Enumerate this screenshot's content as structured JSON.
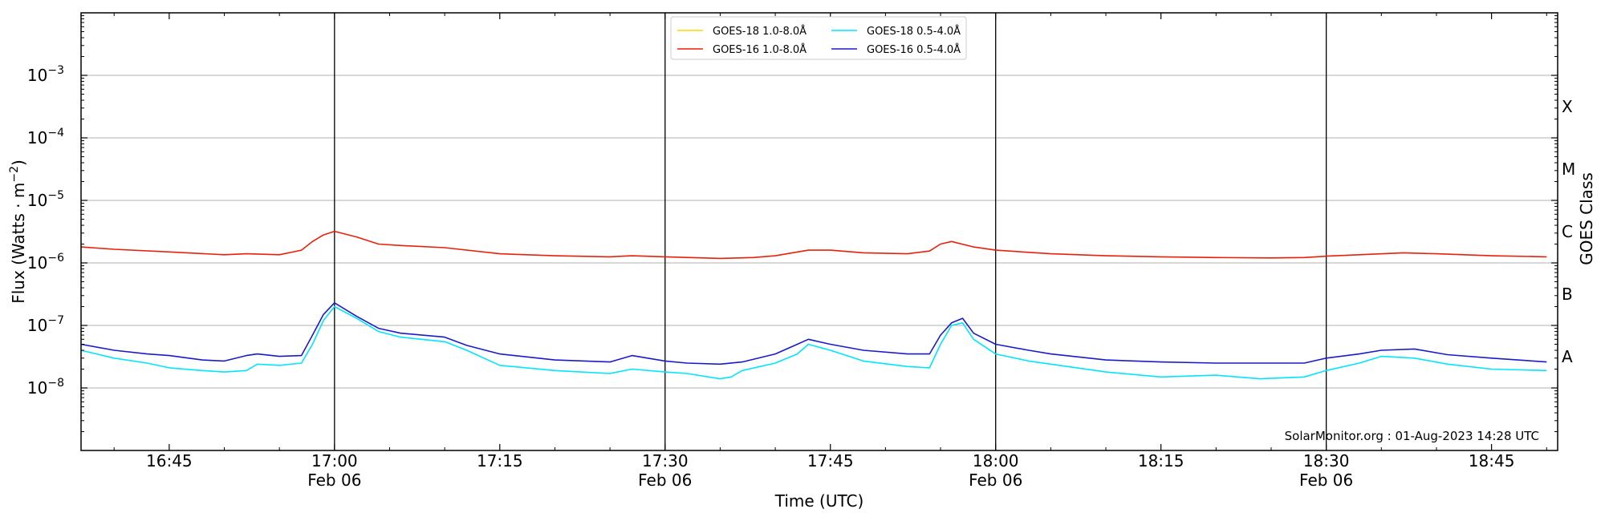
{
  "chart_data": {
    "type": "line",
    "title": "",
    "xlabel": "Time (UTC)",
    "ylabel": "Flux (Watts · m",
    "ylabel_sup": "−2",
    "ylabel_close": ")",
    "y2label": "GOES Class",
    "yscale": "log",
    "xlim": [
      "16:37",
      "18:51"
    ],
    "ylim": [
      1e-09,
      0.01
    ],
    "grid": "horizontal",
    "legend_placement": "top-center",
    "x_ticks": [
      {
        "t": "16:45",
        "line1": "16:45",
        "line2": ""
      },
      {
        "t": "17:00",
        "line1": "17:00",
        "line2": "Feb 06"
      },
      {
        "t": "17:15",
        "line1": "17:15",
        "line2": ""
      },
      {
        "t": "17:30",
        "line1": "17:30",
        "line2": "Feb 06"
      },
      {
        "t": "17:45",
        "line1": "17:45",
        "line2": ""
      },
      {
        "t": "18:00",
        "line1": "18:00",
        "line2": "Feb 06"
      },
      {
        "t": "18:15",
        "line1": "18:15",
        "line2": ""
      },
      {
        "t": "18:30",
        "line1": "18:30",
        "line2": "Feb 06"
      },
      {
        "t": "18:45",
        "line1": "18:45",
        "line2": ""
      }
    ],
    "vertical_lines": [
      "17:00",
      "17:30",
      "18:00",
      "18:30"
    ],
    "y_ticks": [
      {
        "exp": -3,
        "base": "10",
        "sup": "−3"
      },
      {
        "exp": -4,
        "base": "10",
        "sup": "−4"
      },
      {
        "exp": -5,
        "base": "10",
        "sup": "−5"
      },
      {
        "exp": -6,
        "base": "10",
        "sup": "−6"
      },
      {
        "exp": -7,
        "base": "10",
        "sup": "−7"
      },
      {
        "exp": -8,
        "base": "10",
        "sup": "−8"
      }
    ],
    "goes_classes": [
      {
        "label": "X",
        "exp": -3.5
      },
      {
        "label": "M",
        "exp": -4.5
      },
      {
        "label": "C",
        "exp": -5.5
      },
      {
        "label": "B",
        "exp": -6.5
      },
      {
        "label": "A",
        "exp": -7.5
      }
    ],
    "series": [
      {
        "name": "GOES-18 1.0-8.0Å",
        "color": "#ffd700",
        "times": [],
        "values": []
      },
      {
        "name": "GOES-16 1.0-8.0Å",
        "color": "#e8200a",
        "times": [
          "16:37",
          "16:40",
          "16:45",
          "16:50",
          "16:52",
          "16:55",
          "16:57",
          "16:58",
          "16:59",
          "17:00",
          "17:02",
          "17:04",
          "17:06",
          "17:10",
          "17:15",
          "17:20",
          "17:25",
          "17:27",
          "17:30",
          "17:35",
          "17:38",
          "17:40",
          "17:43",
          "17:45",
          "17:48",
          "17:52",
          "17:54",
          "17:55",
          "17:56",
          "17:58",
          "18:00",
          "18:05",
          "18:10",
          "18:15",
          "18:20",
          "18:25",
          "18:28",
          "18:30",
          "18:33",
          "18:37",
          "18:40",
          "18:45",
          "18:50"
        ],
        "values": [
          1.8e-06,
          1.65e-06,
          1.5e-06,
          1.35e-06,
          1.4e-06,
          1.35e-06,
          1.6e-06,
          2.2e-06,
          2.8e-06,
          3.2e-06,
          2.6e-06,
          2e-06,
          1.9e-06,
          1.75e-06,
          1.4e-06,
          1.3e-06,
          1.25e-06,
          1.3e-06,
          1.25e-06,
          1.18e-06,
          1.22e-06,
          1.3e-06,
          1.6e-06,
          1.6e-06,
          1.45e-06,
          1.4e-06,
          1.55e-06,
          2e-06,
          2.2e-06,
          1.8e-06,
          1.6e-06,
          1.4e-06,
          1.3e-06,
          1.25e-06,
          1.22e-06,
          1.2e-06,
          1.22e-06,
          1.28e-06,
          1.35e-06,
          1.45e-06,
          1.4e-06,
          1.3e-06,
          1.25e-06
        ]
      },
      {
        "name": "GOES-18 0.5-4.0Å",
        "color": "#00e5ff",
        "times": [
          "16:37",
          "16:40",
          "16:43",
          "16:45",
          "16:48",
          "16:50",
          "16:52",
          "16:53",
          "16:55",
          "16:57",
          "16:58",
          "16:59",
          "17:00",
          "17:02",
          "17:04",
          "17:06",
          "17:10",
          "17:12",
          "17:15",
          "17:20",
          "17:25",
          "17:27",
          "17:30",
          "17:32",
          "17:35",
          "17:36",
          "17:37",
          "17:40",
          "17:42",
          "17:43",
          "17:45",
          "17:48",
          "17:52",
          "17:54",
          "17:55",
          "17:56",
          "17:57",
          "17:58",
          "18:00",
          "18:03",
          "18:05",
          "18:10",
          "18:15",
          "18:20",
          "18:24",
          "18:28",
          "18:30",
          "18:33",
          "18:35",
          "18:38",
          "18:41",
          "18:45",
          "18:50"
        ],
        "values": [
          4e-08,
          3e-08,
          2.5e-08,
          2.1e-08,
          1.9e-08,
          1.8e-08,
          1.9e-08,
          2.4e-08,
          2.3e-08,
          2.5e-08,
          5e-08,
          1.2e-07,
          2e-07,
          1.3e-07,
          8e-08,
          6.5e-08,
          5.5e-08,
          4e-08,
          2.3e-08,
          1.9e-08,
          1.7e-08,
          2e-08,
          1.8e-08,
          1.7e-08,
          1.4e-08,
          1.5e-08,
          1.9e-08,
          2.5e-08,
          3.5e-08,
          5e-08,
          4e-08,
          2.7e-08,
          2.2e-08,
          2.1e-08,
          5e-08,
          1e-07,
          1.1e-07,
          6e-08,
          3.5e-08,
          2.7e-08,
          2.4e-08,
          1.8e-08,
          1.5e-08,
          1.6e-08,
          1.4e-08,
          1.5e-08,
          1.9e-08,
          2.5e-08,
          3.2e-08,
          3e-08,
          2.4e-08,
          2e-08,
          1.9e-08
        ]
      },
      {
        "name": "GOES-16 0.5-4.0Å",
        "color": "#1a1acc",
        "times": [
          "16:37",
          "16:40",
          "16:43",
          "16:45",
          "16:48",
          "16:50",
          "16:52",
          "16:53",
          "16:55",
          "16:57",
          "16:58",
          "16:59",
          "17:00",
          "17:02",
          "17:04",
          "17:06",
          "17:10",
          "17:12",
          "17:15",
          "17:20",
          "17:25",
          "17:27",
          "17:30",
          "17:32",
          "17:35",
          "17:37",
          "17:40",
          "17:42",
          "17:43",
          "17:45",
          "17:48",
          "17:52",
          "17:54",
          "17:55",
          "17:56",
          "17:57",
          "17:58",
          "18:00",
          "18:03",
          "18:05",
          "18:10",
          "18:15",
          "18:20",
          "18:24",
          "18:28",
          "18:30",
          "18:33",
          "18:35",
          "18:38",
          "18:41",
          "18:45",
          "18:50"
        ],
        "values": [
          5e-08,
          4e-08,
          3.5e-08,
          3.3e-08,
          2.8e-08,
          2.7e-08,
          3.3e-08,
          3.5e-08,
          3.2e-08,
          3.3e-08,
          7e-08,
          1.5e-07,
          2.3e-07,
          1.4e-07,
          9e-08,
          7.5e-08,
          6.5e-08,
          4.8e-08,
          3.5e-08,
          2.8e-08,
          2.6e-08,
          3.3e-08,
          2.7e-08,
          2.5e-08,
          2.4e-08,
          2.6e-08,
          3.5e-08,
          5e-08,
          6e-08,
          5e-08,
          4e-08,
          3.5e-08,
          3.5e-08,
          7e-08,
          1.1e-07,
          1.3e-07,
          7.5e-08,
          5e-08,
          4e-08,
          3.5e-08,
          2.8e-08,
          2.6e-08,
          2.5e-08,
          2.5e-08,
          2.5e-08,
          3e-08,
          3.5e-08,
          4e-08,
          4.2e-08,
          3.4e-08,
          3e-08,
          2.6e-08
        ]
      }
    ],
    "credit": "SolarMonitor.org : 01-Aug-2023 14:28 UTC"
  }
}
